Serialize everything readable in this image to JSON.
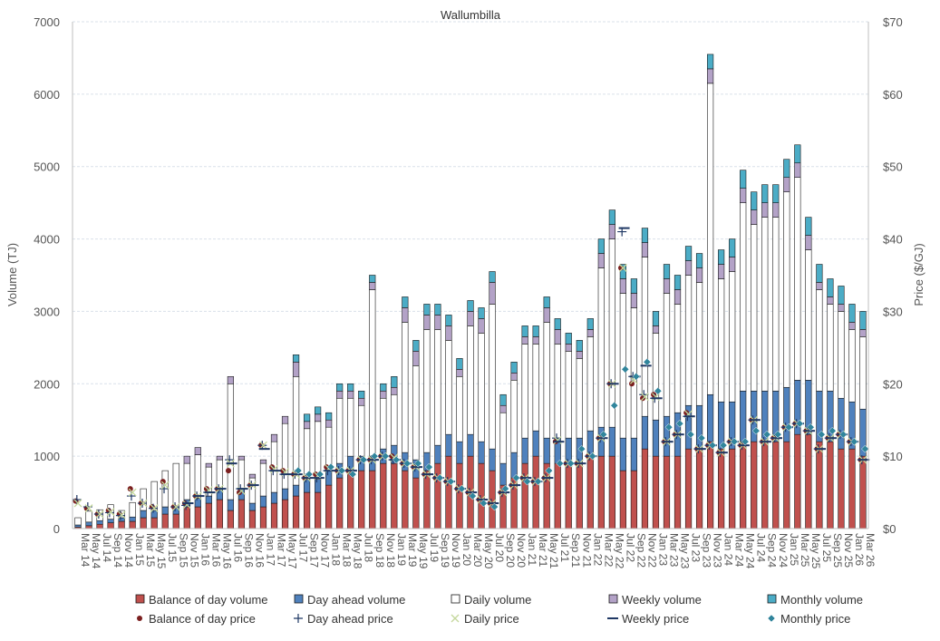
{
  "chart_data": {
    "type": "bar",
    "title": "Wallumbilla",
    "ylabel": "Volume (TJ)",
    "y2label": "Price ($/GJ)",
    "ylim": [
      0,
      7000
    ],
    "y2lim": [
      0,
      70
    ],
    "yticks": [
      "0",
      "1000",
      "2000",
      "3000",
      "4000",
      "5000",
      "6000",
      "7000"
    ],
    "y2ticks": [
      "$0",
      "$10",
      "$20",
      "$30",
      "$40",
      "$50",
      "$60",
      "$70"
    ],
    "grid": true,
    "legend_position": "bottom",
    "x_labels": [
      "Mar 14",
      "May 14",
      "Jul 14",
      "Sep 14",
      "Nov 14",
      "Jan 15",
      "Mar 15",
      "May 15",
      "Jul 15",
      "Sep 15",
      "Nov 15",
      "Jan 16",
      "Mar 16",
      "May 16",
      "Jul 16",
      "Sep 16",
      "Nov 16",
      "Jan 17",
      "Mar 17",
      "May 17",
      "Jul 17",
      "Sep 17",
      "Nov 17",
      "Jan 18",
      "Mar 18",
      "May 18",
      "Jul 18",
      "Sep 18",
      "Nov 18",
      "Jan 19",
      "Mar 19",
      "May 19",
      "Jul 19",
      "Sep 19",
      "Nov 19",
      "Jan 20",
      "Mar 20",
      "May 20",
      "Jul 20",
      "Sep 20",
      "Nov 20",
      "Jan 21",
      "Mar 21",
      "May 21",
      "Jul 21",
      "Sep 21",
      "Nov 21",
      "Jan 22",
      "Mar 22",
      "May 22",
      "Jul 22",
      "Sep 22",
      "Nov 22",
      "Jan 23",
      "Mar 23",
      "May 23",
      "Jul 23",
      "Sep 23",
      "Nov 23",
      "Jan 24",
      "Mar 24",
      "May 24",
      "Jul 24",
      "Sep 24",
      "Nov 24",
      "Jan 25",
      "Mar 25",
      "May 25",
      "Jul 25",
      "Sep 25",
      "Nov 25",
      "Jan 26",
      "Mar 26"
    ],
    "volume_series": [
      {
        "name": "Balance of day volume",
        "color": "#c0504d",
        "values": [
          20,
          40,
          60,
          80,
          100,
          100,
          150,
          150,
          200,
          200,
          300,
          300,
          350,
          400,
          250,
          400,
          250,
          300,
          350,
          400,
          450,
          500,
          500,
          600,
          700,
          800,
          800,
          800,
          900,
          900,
          800,
          700,
          800,
          900,
          1000,
          900,
          1000,
          900,
          800,
          600,
          700,
          900,
          1000,
          900,
          900,
          900,
          900,
          1000,
          1000,
          1000,
          800,
          800,
          1100,
          1000,
          1000,
          1000,
          1100,
          1100,
          1200,
          1100,
          1100,
          1200,
          1200,
          1200,
          1200,
          1200,
          1300,
          1300,
          1200,
          1200,
          1100,
          1100,
          1000
        ]
      },
      {
        "name": "Day ahead volume",
        "color": "#4f81bd",
        "values": [
          30,
          50,
          50,
          50,
          50,
          60,
          100,
          100,
          100,
          100,
          100,
          120,
          100,
          150,
          150,
          150,
          100,
          150,
          150,
          150,
          150,
          180,
          180,
          200,
          200,
          200,
          200,
          200,
          200,
          250,
          250,
          250,
          250,
          250,
          300,
          300,
          300,
          300,
          300,
          300,
          350,
          350,
          350,
          350,
          350,
          350,
          350,
          350,
          400,
          400,
          450,
          450,
          450,
          500,
          550,
          600,
          600,
          600,
          650,
          650,
          650,
          700,
          700,
          700,
          700,
          750,
          750,
          750,
          700,
          700,
          700,
          650,
          650
        ]
      },
      {
        "name": "Daily volume",
        "color": "#ffffff",
        "values": [
          100,
          150,
          150,
          200,
          100,
          200,
          300,
          400,
          500,
          600,
          500,
          600,
          400,
          400,
          1600,
          400,
          350,
          450,
          700,
          900,
          1500,
          700,
          800,
          600,
          900,
          800,
          700,
          2300,
          700,
          700,
          1800,
          1300,
          1700,
          1600,
          1300,
          900,
          1500,
          1500,
          2000,
          700,
          1000,
          1300,
          1200,
          1600,
          1300,
          1200,
          1100,
          1300,
          2200,
          2600,
          2000,
          1800,
          2200,
          1200,
          1700,
          1500,
          1800,
          1700,
          4300,
          1700,
          1800,
          2600,
          2300,
          2400,
          2400,
          2700,
          2800,
          1800,
          1400,
          1200,
          1200,
          1000,
          1000
        ]
      },
      {
        "name": "Weekly volume",
        "color": "#b3a2c7",
        "values": [
          0,
          0,
          0,
          0,
          0,
          0,
          0,
          0,
          0,
          0,
          100,
          100,
          50,
          50,
          100,
          50,
          50,
          50,
          100,
          100,
          200,
          100,
          100,
          100,
          100,
          100,
          100,
          100,
          100,
          100,
          200,
          200,
          200,
          200,
          200,
          100,
          200,
          200,
          300,
          100,
          100,
          100,
          100,
          200,
          200,
          100,
          100,
          100,
          200,
          200,
          200,
          200,
          200,
          100,
          200,
          200,
          200,
          200,
          200,
          200,
          200,
          200,
          200,
          200,
          200,
          200,
          200,
          200,
          100,
          100,
          100,
          100,
          100
        ]
      },
      {
        "name": "Monthly volume",
        "color": "#4bacc6",
        "values": [
          0,
          0,
          0,
          0,
          0,
          0,
          0,
          0,
          0,
          0,
          0,
          0,
          0,
          0,
          0,
          0,
          0,
          0,
          0,
          0,
          100,
          100,
          100,
          100,
          100,
          100,
          100,
          100,
          100,
          150,
          150,
          150,
          150,
          150,
          150,
          150,
          150,
          150,
          150,
          150,
          150,
          150,
          150,
          150,
          150,
          150,
          150,
          150,
          200,
          200,
          200,
          200,
          200,
          200,
          200,
          200,
          200,
          200,
          200,
          200,
          250,
          250,
          250,
          250,
          250,
          250,
          250,
          250,
          250,
          250,
          250,
          250,
          250
        ]
      }
    ],
    "price_series": [
      {
        "name": "Balance of day price",
        "color": "#7b1f1f",
        "marker": "circle",
        "values": [
          3.8,
          2.8,
          2.0,
          2.5,
          2.0,
          5.5,
          3.5,
          3.0,
          6.5,
          3.0,
          3.5,
          4.5,
          5.5,
          5.5,
          8.0,
          5.0,
          6.0,
          11.5,
          8.5,
          8.0,
          7.5,
          7.0,
          7.5,
          8.5,
          8.0,
          8.0,
          9.5,
          9.5,
          10.0,
          10.0,
          9.0,
          8.5,
          7.5,
          7.0,
          6.5,
          5.5,
          5.0,
          4.0,
          3.5,
          5.0,
          6.0,
          7.0,
          6.5,
          7.0,
          12.0,
          9.0,
          9.0,
          10.0,
          12.5,
          20.0,
          36.0,
          20.0,
          18.0,
          18.5,
          12.0,
          13.0,
          16.0,
          11.0,
          11.5,
          10.5,
          12.0,
          11.5,
          15.0,
          12.0,
          12.5,
          14.0,
          14.5,
          13.5,
          11.0,
          12.5,
          13.0,
          12.0,
          9.5
        ]
      },
      {
        "name": "Day ahead price",
        "color": "#1f3864",
        "marker": "plus",
        "values": [
          4.0,
          3.0,
          2.0,
          2.2,
          1.8,
          4.5,
          3.5,
          2.8,
          5.5,
          3.0,
          3.2,
          4.5,
          5.0,
          5.5,
          9.5,
          5.5,
          6.0,
          11.5,
          8.0,
          7.5,
          7.5,
          7.0,
          7.0,
          8.0,
          8.0,
          8.0,
          9.5,
          9.5,
          10.0,
          9.5,
          9.0,
          8.5,
          7.5,
          7.0,
          6.5,
          5.5,
          5.0,
          4.0,
          3.5,
          5.0,
          6.0,
          7.0,
          6.5,
          7.0,
          12.5,
          9.0,
          9.0,
          10.0,
          12.5,
          20.0,
          41.0,
          21.0,
          18.5,
          18.0,
          12.0,
          13.0,
          15.5,
          11.0,
          11.5,
          10.5,
          12.0,
          11.5,
          15.0,
          12.0,
          12.5,
          14.0,
          14.5,
          13.5,
          11.0,
          12.5,
          13.0,
          12.0,
          9.5
        ]
      },
      {
        "name": "Daily price",
        "color": "#c4d79b",
        "marker": "x",
        "values": [
          3.5,
          2.8,
          2.0,
          2.3,
          1.9,
          5.0,
          3.5,
          2.8,
          6.0,
          3.0,
          3.3,
          4.5,
          5.3,
          5.5,
          9.0,
          5.2,
          6.0,
          11.5,
          8.2,
          7.8,
          7.5,
          7.0,
          7.3,
          8.3,
          8.0,
          8.0,
          9.5,
          9.5,
          10.0,
          9.8,
          9.0,
          8.5,
          7.5,
          7.0,
          6.5,
          5.5,
          5.0,
          4.0,
          3.5,
          5.0,
          6.0,
          7.0,
          6.5,
          7.0,
          12.2,
          9.0,
          9.0,
          10.0,
          12.5,
          20.0,
          36.0,
          20.5,
          18.2,
          18.2,
          12.0,
          13.0,
          15.8,
          11.0,
          11.5,
          10.5,
          12.0,
          11.5,
          15.0,
          12.0,
          12.5,
          14.0,
          14.5,
          13.5,
          11.0,
          12.5,
          13.0,
          12.0,
          9.5
        ]
      },
      {
        "name": "Weekly price",
        "color": "#1f3864",
        "marker": "dash",
        "values": [
          null,
          null,
          null,
          null,
          null,
          null,
          null,
          null,
          null,
          null,
          3.5,
          4.5,
          5.0,
          5.5,
          9.0,
          5.5,
          6.0,
          11.0,
          8.0,
          7.5,
          7.5,
          7.0,
          7.0,
          8.0,
          8.0,
          8.0,
          9.5,
          9.5,
          10.0,
          9.5,
          9.0,
          8.5,
          7.5,
          7.0,
          6.5,
          5.5,
          5.0,
          4.0,
          3.5,
          5.0,
          6.0,
          7.0,
          6.5,
          7.0,
          12.0,
          9.0,
          9.0,
          10.0,
          12.5,
          20.0,
          41.5,
          21.0,
          22.5,
          18.0,
          12.0,
          13.0,
          15.5,
          11.0,
          11.5,
          10.5,
          12.0,
          11.5,
          15.0,
          12.0,
          12.5,
          14.0,
          14.5,
          13.5,
          11.0,
          12.5,
          13.0,
          12.0,
          9.5
        ]
      },
      {
        "name": "Monthly price",
        "color": "#31859c",
        "marker": "diamond",
        "values": [
          null,
          null,
          null,
          null,
          null,
          null,
          null,
          null,
          null,
          null,
          null,
          null,
          null,
          null,
          null,
          null,
          null,
          null,
          null,
          null,
          8.0,
          7.5,
          7.5,
          8.5,
          8.0,
          7.5,
          9.5,
          10.0,
          10.0,
          9.5,
          9.0,
          9.0,
          8.5,
          7.0,
          6.5,
          5.5,
          4.5,
          3.5,
          3.0,
          5.5,
          7.0,
          6.5,
          6.5,
          8.0,
          9.0,
          9.0,
          11.0,
          10.0,
          13.0,
          17.0,
          22.0,
          21.0,
          23.0,
          19.0,
          14.0,
          14.5,
          13.0,
          12.5,
          11.5,
          11.5,
          12.0,
          12.0,
          13.5,
          13.0,
          13.0,
          14.0,
          14.5,
          14.0,
          13.0,
          13.5,
          13.0,
          12.0,
          11.0
        ]
      }
    ]
  }
}
